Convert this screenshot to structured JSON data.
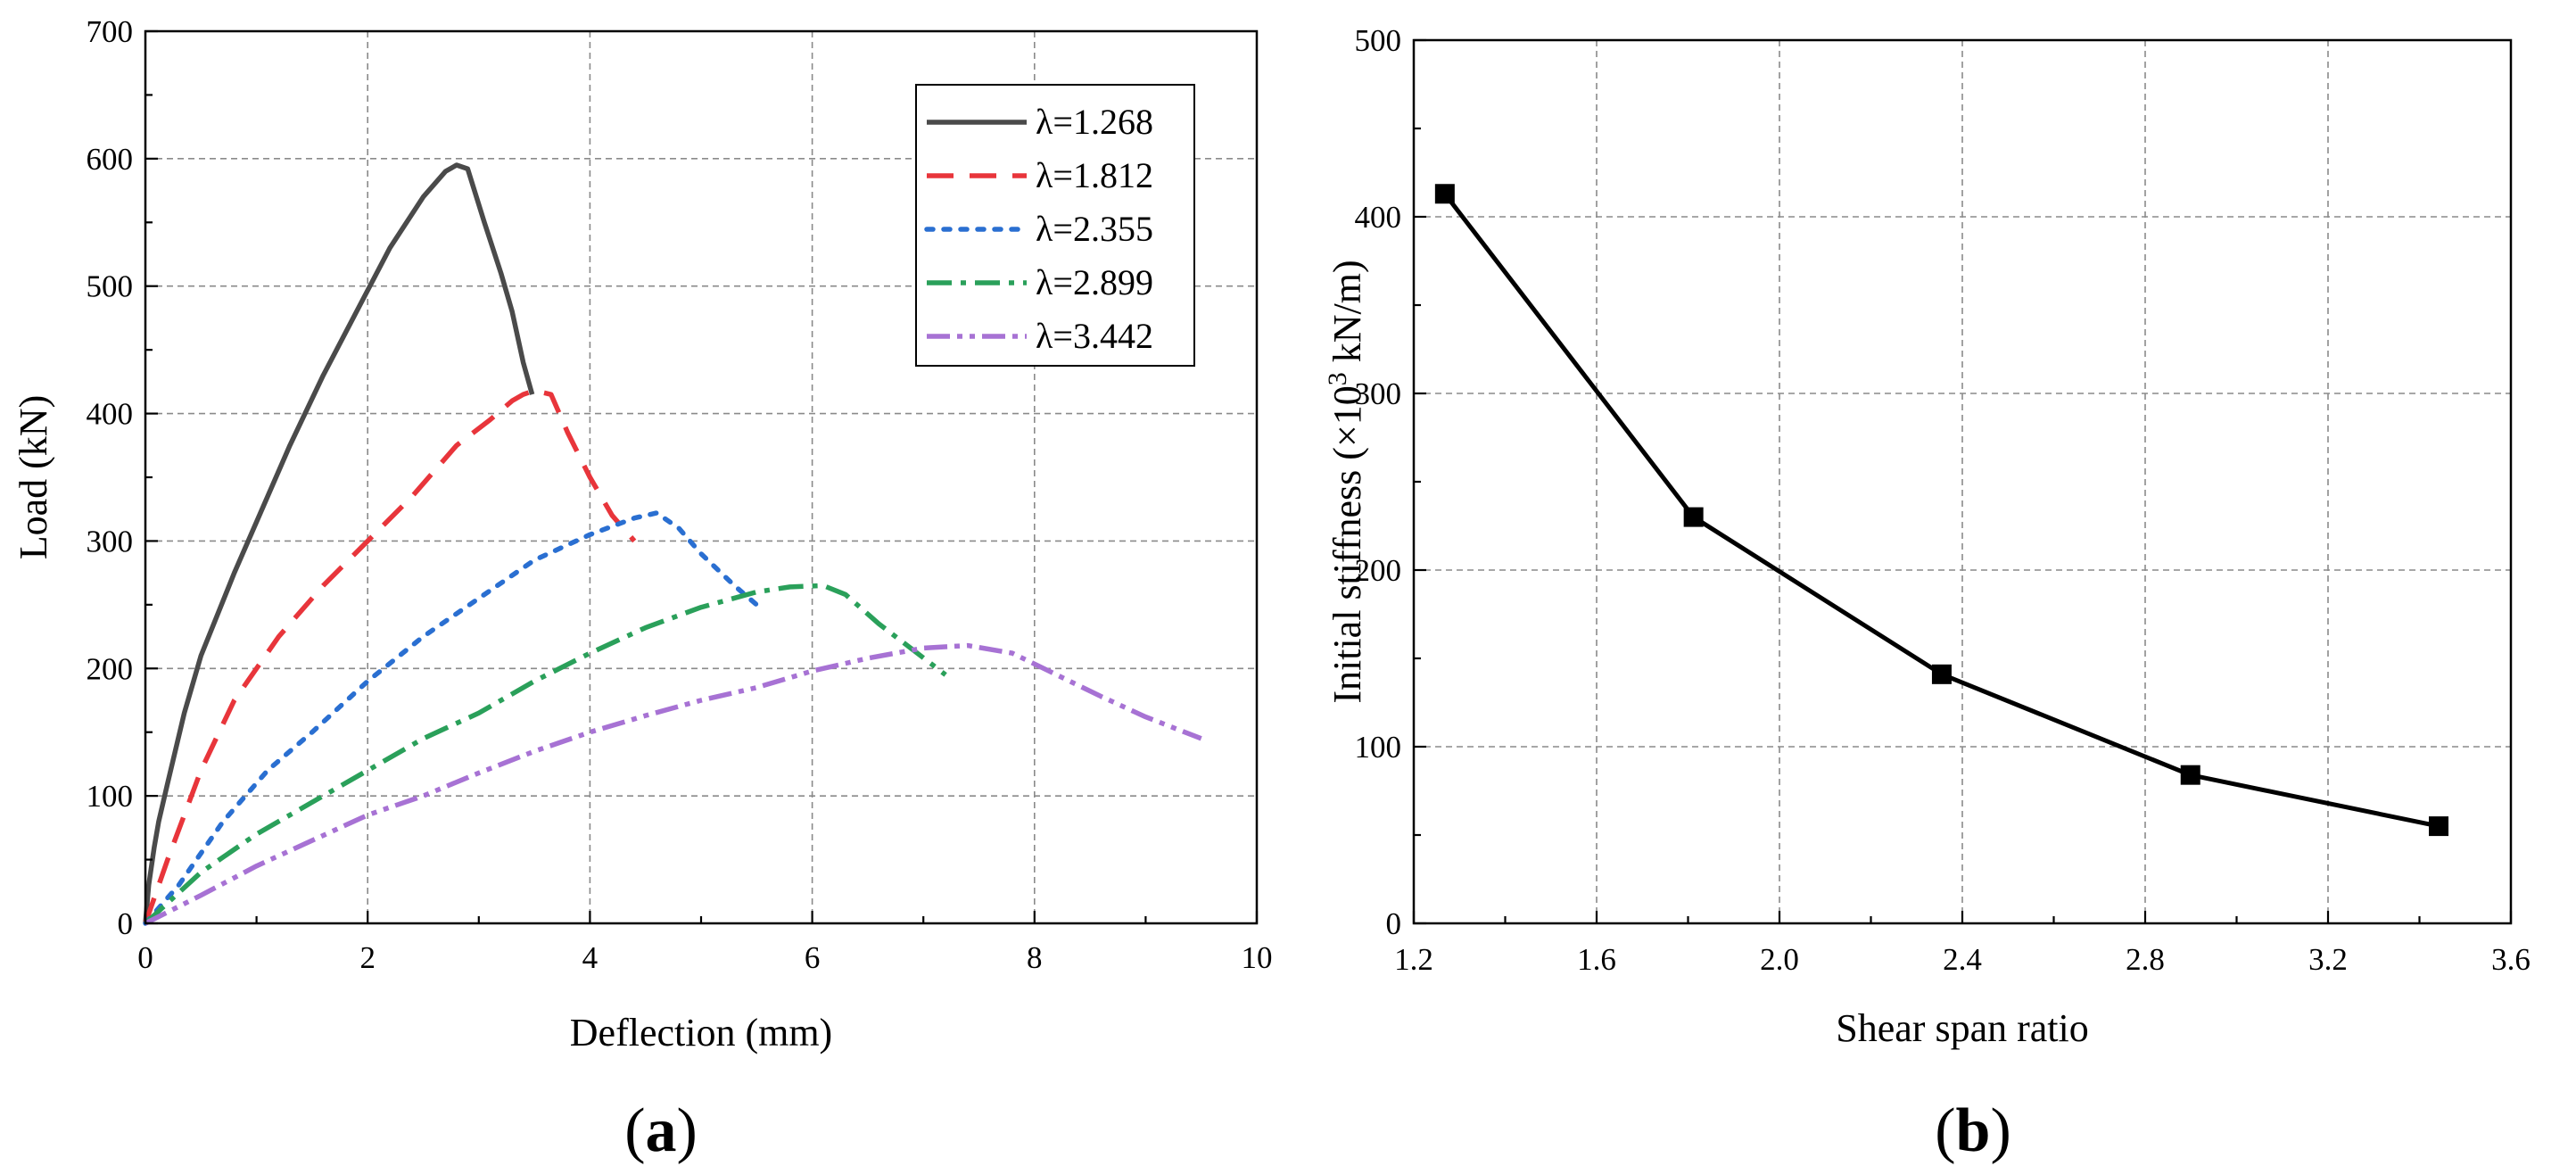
{
  "chart_data": [
    {
      "type": "line",
      "panel_label": "(a)",
      "xlabel": "Deflection (mm)",
      "ylabel": "Load (kN)",
      "xlim": [
        0,
        10
      ],
      "ylim": [
        0,
        700
      ],
      "xticks": [
        0,
        2,
        4,
        6,
        8,
        10
      ],
      "yticks": [
        0,
        100,
        200,
        300,
        400,
        500,
        600,
        700
      ],
      "grid": true,
      "legend_position": "top-right",
      "series": [
        {
          "name": "λ=1.268",
          "color": "#4a4a4a",
          "dash": "solid",
          "x": [
            0,
            0.03,
            0.08,
            0.12,
            0.2,
            0.35,
            0.5,
            0.8,
            1.0,
            1.3,
            1.6,
            1.9,
            2.2,
            2.5,
            2.7,
            2.8,
            2.9,
            3.05,
            3.2,
            3.3,
            3.4,
            3.48
          ],
          "y": [
            0,
            30,
            60,
            80,
            110,
            165,
            210,
            275,
            315,
            375,
            430,
            480,
            530,
            570,
            590,
            595,
            592,
            550,
            510,
            480,
            440,
            415
          ]
        },
        {
          "name": "λ=1.812",
          "color": "#e8353b",
          "dash": "long-dash",
          "x": [
            0,
            0.2,
            0.5,
            0.8,
            1.2,
            1.6,
            2.0,
            2.4,
            2.8,
            3.1,
            3.3,
            3.4,
            3.5,
            3.65,
            3.8,
            4.0,
            4.2,
            4.4
          ],
          "y": [
            0,
            50,
            120,
            175,
            225,
            265,
            300,
            335,
            375,
            395,
            410,
            415,
            418,
            415,
            385,
            350,
            320,
            300
          ]
        },
        {
          "name": "λ=2.355",
          "color": "#2a6fd1",
          "dash": "dotted",
          "x": [
            0,
            0.3,
            0.7,
            1.1,
            1.5,
            2.0,
            2.5,
            3.0,
            3.5,
            4.0,
            4.4,
            4.6,
            4.8,
            5.0,
            5.3,
            5.5
          ],
          "y": [
            0,
            30,
            80,
            120,
            150,
            190,
            225,
            255,
            285,
            305,
            318,
            322,
            310,
            290,
            265,
            250
          ]
        },
        {
          "name": "λ=2.899",
          "color": "#2aa05a",
          "dash": "dash-dot",
          "x": [
            0,
            0.5,
            1.0,
            1.5,
            2.0,
            2.5,
            3.0,
            3.5,
            4.0,
            4.5,
            5.0,
            5.5,
            5.8,
            6.1,
            6.3,
            6.6,
            6.9,
            7.2
          ],
          "y": [
            0,
            40,
            70,
            95,
            120,
            145,
            165,
            190,
            212,
            232,
            248,
            260,
            264,
            265,
            258,
            235,
            215,
            195
          ]
        },
        {
          "name": "λ=3.442",
          "color": "#a772d4",
          "dash": "dash-dot-dot",
          "x": [
            0,
            0.5,
            1.0,
            1.5,
            2.0,
            2.5,
            3.0,
            3.5,
            4.0,
            4.5,
            5.0,
            5.5,
            6.0,
            6.5,
            7.0,
            7.4,
            7.8,
            8.2,
            8.6,
            9.0,
            9.5
          ],
          "y": [
            0,
            22,
            45,
            65,
            85,
            100,
            118,
            135,
            150,
            163,
            175,
            185,
            198,
            208,
            216,
            218,
            212,
            195,
            178,
            162,
            145
          ]
        }
      ]
    },
    {
      "type": "line",
      "panel_label": "(b)",
      "xlabel": "Shear span ratio",
      "ylabel_main": "Initial stiffness (×10",
      "ylabel_sup": "3",
      "ylabel_tail": " kN/m)",
      "xlim": [
        1.2,
        3.6
      ],
      "ylim": [
        0,
        500
      ],
      "xticks": [
        "1.2",
        "1.6",
        "2.0",
        "2.4",
        "2.8",
        "3.2",
        "3.6"
      ],
      "yticks": [
        "0",
        "100",
        "200",
        "300",
        "400",
        "500"
      ],
      "grid": true,
      "marker": "square",
      "series": [
        {
          "name": "Initial stiffness",
          "color": "#000000",
          "x": [
            1.268,
            1.812,
            2.355,
            2.899,
            3.442
          ],
          "y": [
            413,
            230,
            141,
            84,
            55
          ]
        }
      ]
    }
  ]
}
